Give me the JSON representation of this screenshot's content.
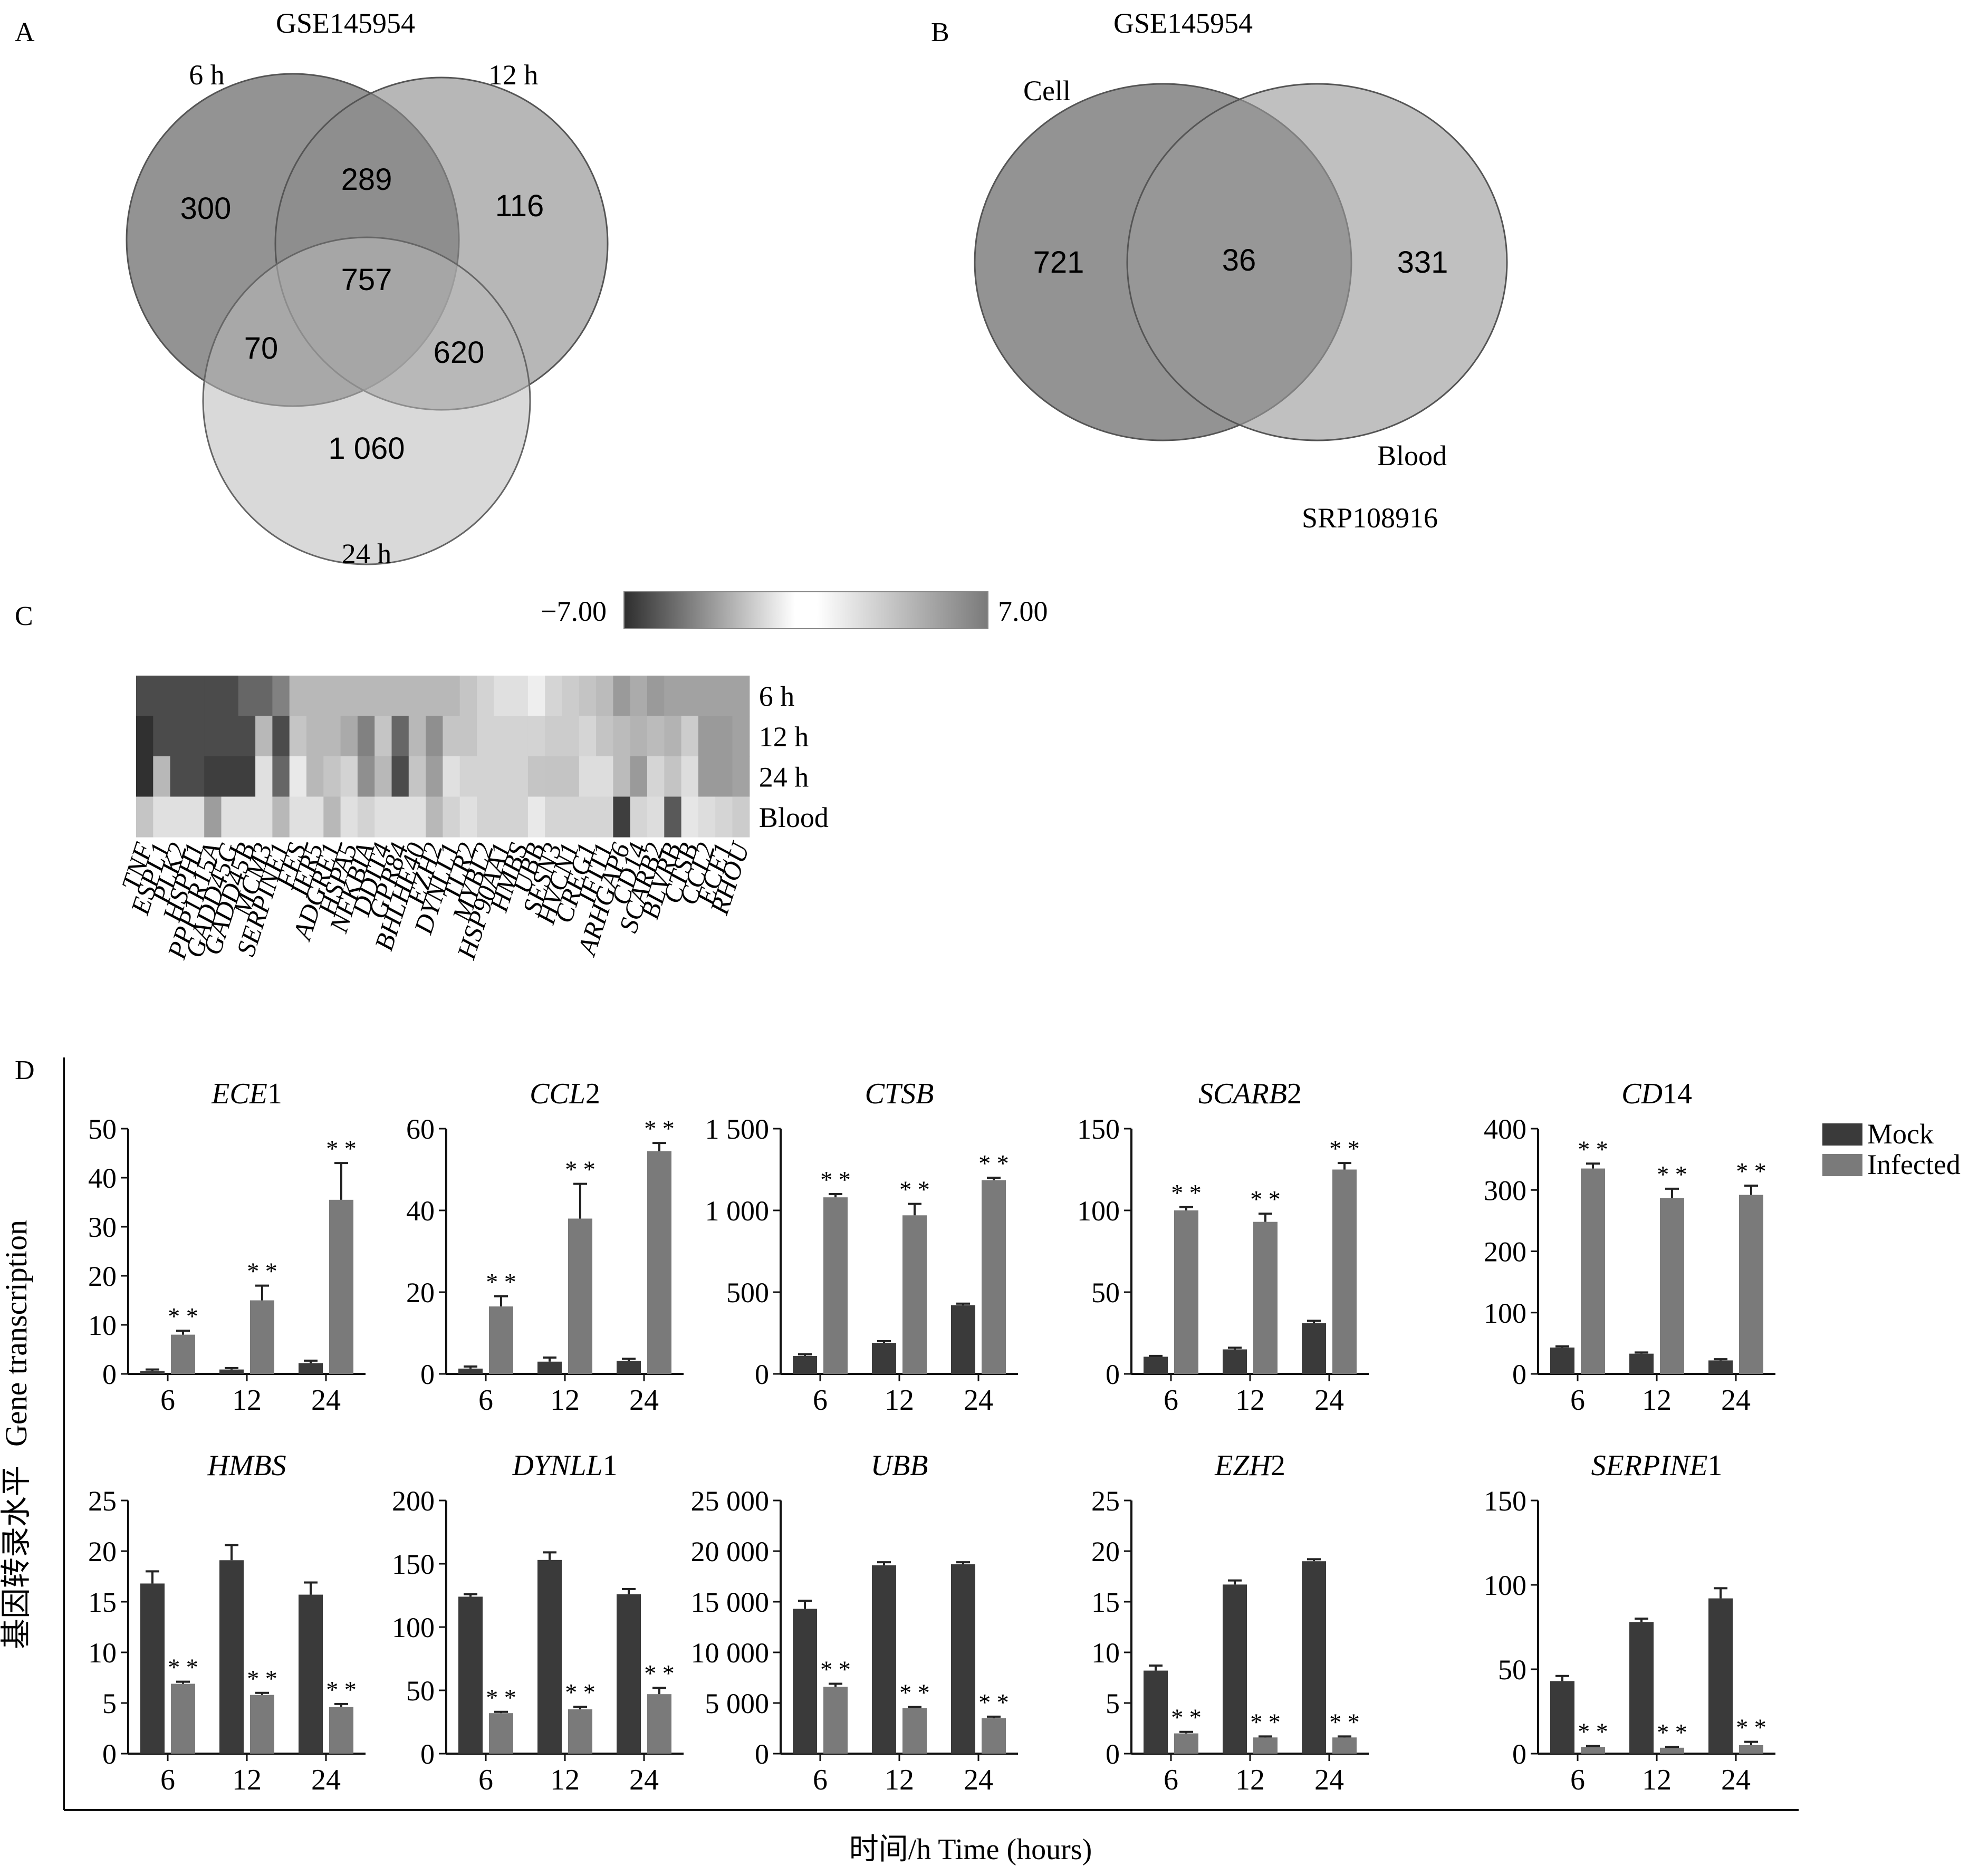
{
  "panels": {
    "A": {
      "letter": "A",
      "title": "GSE145954",
      "set_labels": [
        "6 h",
        "12 h",
        "24 h"
      ],
      "regions": {
        "only_6h": "300",
        "6h_12h": "289",
        "only_12h": "116",
        "all_three": "757",
        "6h_24h": "70",
        "12h_24h": "620",
        "only_24h": "1 060"
      }
    },
    "B": {
      "letter": "B",
      "title_top": "GSE145954",
      "set_labels": [
        "Cell",
        "Blood"
      ],
      "title_bottom": "SRP108916",
      "regions": {
        "only_cell": "721",
        "both": "36",
        "only_blood": "331"
      }
    },
    "C": {
      "letter": "C",
      "scale_min": "−7.00",
      "scale_max": "7.00",
      "rows": [
        "6 h",
        "12 h",
        "24 h",
        "Blood"
      ],
      "genes": [
        "TNF",
        "ESPL1",
        "PLK2",
        "HSPH1",
        "PPP1R15A",
        "GADD45G",
        "GADD45B",
        "MCM3",
        "SERPINE1",
        "FES",
        "IER5",
        "ADGRE1",
        "HSPA5",
        "NFKBIA",
        "DDIT4",
        "GPR84",
        "BHLHE40",
        "EZH2",
        "DYNLL1",
        "TLR2",
        "MYBL2",
        "HSP90AA1",
        "HMBS",
        "UBB",
        "SESN3",
        "HVCN1",
        "CREG1",
        "IFIT1",
        "ARHGAP6",
        "CD14",
        "SCARB2",
        "BLVRB",
        "CTSB",
        "CCL2",
        "ECE1",
        "RHOU"
      ]
    },
    "D": {
      "letter": "D",
      "ylabel_cn": "基因转录水平",
      "ylabel_en": "Gene transcription",
      "xlabel": "时间/h  Time (hours)",
      "legend": [
        "Mock",
        "Infected"
      ],
      "significance": "* *"
    }
  },
  "colors": {
    "mock": "#3a3a3a",
    "infected": "#7a7a7a",
    "axis": "#111111"
  },
  "chart_data": [
    {
      "panel": "A",
      "type": "venn",
      "sets": [
        "6 h",
        "12 h",
        "24 h"
      ],
      "regions": [
        {
          "sets": [
            "6 h"
          ],
          "value": 300
        },
        {
          "sets": [
            "6 h",
            "12 h"
          ],
          "value": 289
        },
        {
          "sets": [
            "12 h"
          ],
          "value": 116
        },
        {
          "sets": [
            "6 h",
            "12 h",
            "24 h"
          ],
          "value": 757
        },
        {
          "sets": [
            "6 h",
            "24 h"
          ],
          "value": 70
        },
        {
          "sets": [
            "12 h",
            "24 h"
          ],
          "value": 620
        },
        {
          "sets": [
            "24 h"
          ],
          "value": 1060
        }
      ]
    },
    {
      "panel": "B",
      "type": "venn",
      "sets": [
        "Cell",
        "Blood"
      ],
      "regions": [
        {
          "sets": [
            "Cell"
          ],
          "value": 721
        },
        {
          "sets": [
            "Cell",
            "Blood"
          ],
          "value": 36
        },
        {
          "sets": [
            "Blood"
          ],
          "value": 331
        }
      ]
    },
    {
      "panel": "C",
      "type": "heatmap",
      "range": [
        -7,
        7
      ],
      "rows": [
        "6 h",
        "12 h",
        "24 h",
        "Blood"
      ],
      "columns": [
        "TNF",
        "ESPL1",
        "PLK2",
        "HSPH1",
        "PPP1R15A",
        "GADD45G",
        "GADD45B",
        "MCM3",
        "SERPINE1",
        "FES",
        "IER5",
        "ADGRE1",
        "HSPA5",
        "NFKBIA",
        "DDIT4",
        "GPR84",
        "BHLHE40",
        "EZH2",
        "DYNLL1",
        "TLR2",
        "MYBL2",
        "HSP90AA1",
        "HMBS",
        "UBB",
        "SESN3",
        "HVCN1",
        "CREG1",
        "IFIT1",
        "ARHGAP6",
        "CD14",
        "SCARB2",
        "BLVRB",
        "CTSB",
        "CCL2",
        "ECE1",
        "RHOU"
      ],
      "values": [
        [
          -6,
          -6,
          -6,
          -6,
          -6,
          -6,
          -5,
          -5,
          -4,
          -2,
          -2,
          -2,
          -2,
          -2,
          -2,
          -2,
          -2,
          -2,
          -2,
          -1.5,
          -1,
          -0.5,
          -0.5,
          0,
          1.5,
          2,
          2.5,
          3,
          5,
          4,
          5,
          4.5,
          4.5,
          4.5,
          4.5,
          4.5
        ],
        [
          -7,
          -6,
          -6,
          -6,
          -6,
          -6,
          -6,
          -2,
          -6,
          -1.5,
          -2,
          -2,
          -2.5,
          -4,
          -1.5,
          -5,
          -2,
          -3.5,
          -1.5,
          -1.5,
          -1,
          -1,
          -1,
          -1,
          2,
          2,
          1.5,
          2.5,
          3,
          3.5,
          3,
          3.5,
          2,
          5,
          5,
          4.5
        ],
        [
          -7,
          -2,
          -6,
          -6,
          -6.5,
          -6.5,
          -6.5,
          -0.5,
          -5,
          -0.2,
          -2,
          -1.5,
          -1,
          -3.5,
          -2,
          -6,
          -1.5,
          -3,
          -0.5,
          -1,
          -1,
          -1,
          -1,
          -1.5,
          2.5,
          2.5,
          1,
          1,
          3,
          5,
          1.5,
          2.5,
          1,
          5,
          5,
          4.5
        ],
        [
          -1.5,
          -0.5,
          -0.5,
          -0.5,
          -3,
          -0.5,
          -0.5,
          -0.5,
          -2,
          -0.5,
          -0.5,
          -2,
          -0.5,
          -1,
          -0.5,
          -0.5,
          -0.5,
          -2,
          -1,
          -0.5,
          -1,
          -1,
          -1,
          -0.2,
          1.5,
          1.5,
          1.5,
          1.5,
          -6.5,
          1.5,
          1,
          -5.5,
          0.5,
          1,
          1.5,
          2
        ]
      ]
    },
    {
      "panel": "D",
      "type": "bar",
      "title": "ECE1",
      "italic_part": "ECE",
      "plain_part": "1",
      "categories": [
        "6",
        "12",
        "24"
      ],
      "ylim": [
        0,
        50
      ],
      "yticks": [
        0,
        10,
        20,
        30,
        40,
        50
      ],
      "series": [
        {
          "name": "Mock",
          "values": [
            0.6,
            0.9,
            2.2
          ],
          "errors": [
            0.3,
            0.3,
            0.5
          ]
        },
        {
          "name": "Infected",
          "values": [
            8,
            15,
            35.5
          ],
          "errors": [
            0.8,
            3,
            7.5
          ]
        }
      ],
      "significant_series": "Infected"
    },
    {
      "panel": "D",
      "type": "bar",
      "title": "CCL2",
      "italic_part": "CCL",
      "plain_part": "2",
      "categories": [
        "6",
        "12",
        "24"
      ],
      "ylim": [
        0,
        60
      ],
      "yticks": [
        0,
        20,
        40,
        60
      ],
      "series": [
        {
          "name": "Mock",
          "values": [
            1.3,
            3,
            3.2
          ],
          "errors": [
            0.5,
            1,
            0.5
          ]
        },
        {
          "name": "Infected",
          "values": [
            16.5,
            38,
            54.5
          ],
          "errors": [
            2.5,
            8.5,
            2
          ]
        }
      ],
      "significant_series": "Infected"
    },
    {
      "panel": "D",
      "type": "bar",
      "title": "CTSB",
      "italic_part": "CTSB",
      "plain_part": "",
      "categories": [
        "6",
        "12",
        "24"
      ],
      "ylim": [
        0,
        1500
      ],
      "yticks": [
        0,
        500,
        1000,
        1500
      ],
      "ytick_labels": [
        "0",
        "500",
        "1 000",
        "1 500"
      ],
      "series": [
        {
          "name": "Mock",
          "values": [
            110,
            190,
            420
          ],
          "errors": [
            10,
            10,
            10
          ]
        },
        {
          "name": "Infected",
          "values": [
            1080,
            970,
            1185
          ],
          "errors": [
            20,
            70,
            15
          ]
        }
      ],
      "significant_series": "Infected"
    },
    {
      "panel": "D",
      "type": "bar",
      "title": "SCARB2",
      "italic_part": "SCARB",
      "plain_part": "2",
      "categories": [
        "6",
        "12",
        "24"
      ],
      "ylim": [
        0,
        150
      ],
      "yticks": [
        0,
        50,
        100,
        150
      ],
      "series": [
        {
          "name": "Mock",
          "values": [
            10.5,
            15,
            31
          ],
          "errors": [
            0.5,
            1,
            1.5
          ]
        },
        {
          "name": "Infected",
          "values": [
            100,
            93,
            125
          ],
          "errors": [
            2,
            5,
            4
          ]
        }
      ],
      "significant_series": "Infected"
    },
    {
      "panel": "D",
      "type": "bar",
      "title": "CD14",
      "italic_part": "CD",
      "plain_part": "14",
      "categories": [
        "6",
        "12",
        "24"
      ],
      "ylim": [
        0,
        400
      ],
      "yticks": [
        0,
        100,
        200,
        300,
        400
      ],
      "series": [
        {
          "name": "Mock",
          "values": [
            43,
            33,
            22
          ],
          "errors": [
            2,
            2,
            2
          ]
        },
        {
          "name": "Infected",
          "values": [
            335,
            287,
            292
          ],
          "errors": [
            8,
            15,
            15
          ]
        }
      ],
      "significant_series": "Infected"
    },
    {
      "panel": "D",
      "type": "bar",
      "title": "HMBS",
      "italic_part": "HMBS",
      "plain_part": "",
      "categories": [
        "6",
        "12",
        "24"
      ],
      "ylim": [
        0,
        25
      ],
      "yticks": [
        0,
        5,
        10,
        15,
        20,
        25
      ],
      "series": [
        {
          "name": "Mock",
          "values": [
            16.8,
            19.1,
            15.7
          ],
          "errors": [
            1.2,
            1.5,
            1.2
          ]
        },
        {
          "name": "Infected",
          "values": [
            6.9,
            5.8,
            4.6
          ],
          "errors": [
            0.2,
            0.2,
            0.3
          ]
        }
      ],
      "significant_series": "Infected"
    },
    {
      "panel": "D",
      "type": "bar",
      "title": "DYNLL1",
      "italic_part": "DYNLL",
      "plain_part": "1",
      "categories": [
        "6",
        "12",
        "24"
      ],
      "ylim": [
        0,
        200
      ],
      "yticks": [
        0,
        50,
        100,
        150,
        200
      ],
      "series": [
        {
          "name": "Mock",
          "values": [
            124,
            153,
            126
          ],
          "errors": [
            2,
            6,
            4
          ]
        },
        {
          "name": "Infected",
          "values": [
            32,
            35,
            47
          ],
          "errors": [
            1,
            2,
            5
          ]
        }
      ],
      "significant_series": "Infected"
    },
    {
      "panel": "D",
      "type": "bar",
      "title": "UBB",
      "italic_part": "UBB",
      "plain_part": "",
      "categories": [
        "6",
        "12",
        "24"
      ],
      "ylim": [
        0,
        25000
      ],
      "yticks": [
        0,
        5000,
        10000,
        15000,
        20000,
        25000
      ],
      "ytick_labels": [
        "0",
        "5 000",
        "10 000",
        "15 000",
        "20 000",
        "25 000"
      ],
      "series": [
        {
          "name": "Mock",
          "values": [
            14300,
            18600,
            18700
          ],
          "errors": [
            800,
            300,
            200
          ]
        },
        {
          "name": "Infected",
          "values": [
            6600,
            4500,
            3500
          ],
          "errors": [
            300,
            100,
            150
          ]
        }
      ],
      "significant_series": "Infected"
    },
    {
      "panel": "D",
      "type": "bar",
      "title": "EZH2",
      "italic_part": "EZH",
      "plain_part": "2",
      "categories": [
        "6",
        "12",
        "24"
      ],
      "ylim": [
        0,
        25
      ],
      "yticks": [
        0,
        5,
        10,
        15,
        20,
        25
      ],
      "series": [
        {
          "name": "Mock",
          "values": [
            8.2,
            16.7,
            19
          ],
          "errors": [
            0.5,
            0.4,
            0.2
          ]
        },
        {
          "name": "Infected",
          "values": [
            2,
            1.6,
            1.6
          ],
          "errors": [
            0.15,
            0.1,
            0.1
          ]
        }
      ],
      "significant_series": "Infected"
    },
    {
      "panel": "D",
      "type": "bar",
      "title": "SERPINE1",
      "italic_part": "SERPINE",
      "plain_part": "1",
      "categories": [
        "6",
        "12",
        "24"
      ],
      "ylim": [
        0,
        150
      ],
      "yticks": [
        0,
        50,
        100,
        150
      ],
      "series": [
        {
          "name": "Mock",
          "values": [
            43,
            78,
            92
          ],
          "errors": [
            3,
            2,
            6
          ]
        },
        {
          "name": "Infected",
          "values": [
            4,
            3.5,
            5
          ],
          "errors": [
            0.5,
            0.5,
            2
          ]
        }
      ],
      "significant_series": "Infected"
    }
  ]
}
